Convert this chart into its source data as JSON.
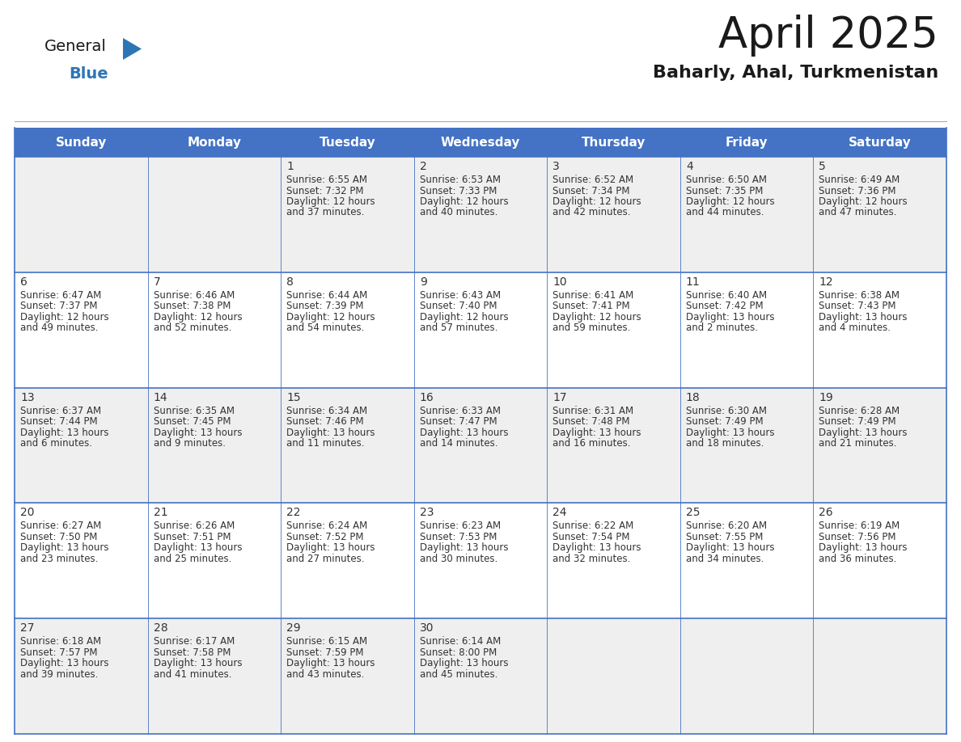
{
  "title": "April 2025",
  "subtitle": "Baharly, Ahal, Turkmenistan",
  "header_bg": "#4472C4",
  "header_text_color": "#FFFFFF",
  "border_color": "#4472C4",
  "text_color": "#333333",
  "days_of_week": [
    "Sunday",
    "Monday",
    "Tuesday",
    "Wednesday",
    "Thursday",
    "Friday",
    "Saturday"
  ],
  "row_bg": [
    "#EFEFEF",
    "#FFFFFF",
    "#EFEFEF",
    "#FFFFFF",
    "#EFEFEF"
  ],
  "weeks": [
    [
      {
        "day": "",
        "sunrise": "",
        "sunset": "",
        "daylight": ""
      },
      {
        "day": "",
        "sunrise": "",
        "sunset": "",
        "daylight": ""
      },
      {
        "day": "1",
        "sunrise": "Sunrise: 6:55 AM",
        "sunset": "Sunset: 7:32 PM",
        "daylight": "Daylight: 12 hours\nand 37 minutes."
      },
      {
        "day": "2",
        "sunrise": "Sunrise: 6:53 AM",
        "sunset": "Sunset: 7:33 PM",
        "daylight": "Daylight: 12 hours\nand 40 minutes."
      },
      {
        "day": "3",
        "sunrise": "Sunrise: 6:52 AM",
        "sunset": "Sunset: 7:34 PM",
        "daylight": "Daylight: 12 hours\nand 42 minutes."
      },
      {
        "day": "4",
        "sunrise": "Sunrise: 6:50 AM",
        "sunset": "Sunset: 7:35 PM",
        "daylight": "Daylight: 12 hours\nand 44 minutes."
      },
      {
        "day": "5",
        "sunrise": "Sunrise: 6:49 AM",
        "sunset": "Sunset: 7:36 PM",
        "daylight": "Daylight: 12 hours\nand 47 minutes."
      }
    ],
    [
      {
        "day": "6",
        "sunrise": "Sunrise: 6:47 AM",
        "sunset": "Sunset: 7:37 PM",
        "daylight": "Daylight: 12 hours\nand 49 minutes."
      },
      {
        "day": "7",
        "sunrise": "Sunrise: 6:46 AM",
        "sunset": "Sunset: 7:38 PM",
        "daylight": "Daylight: 12 hours\nand 52 minutes."
      },
      {
        "day": "8",
        "sunrise": "Sunrise: 6:44 AM",
        "sunset": "Sunset: 7:39 PM",
        "daylight": "Daylight: 12 hours\nand 54 minutes."
      },
      {
        "day": "9",
        "sunrise": "Sunrise: 6:43 AM",
        "sunset": "Sunset: 7:40 PM",
        "daylight": "Daylight: 12 hours\nand 57 minutes."
      },
      {
        "day": "10",
        "sunrise": "Sunrise: 6:41 AM",
        "sunset": "Sunset: 7:41 PM",
        "daylight": "Daylight: 12 hours\nand 59 minutes."
      },
      {
        "day": "11",
        "sunrise": "Sunrise: 6:40 AM",
        "sunset": "Sunset: 7:42 PM",
        "daylight": "Daylight: 13 hours\nand 2 minutes."
      },
      {
        "day": "12",
        "sunrise": "Sunrise: 6:38 AM",
        "sunset": "Sunset: 7:43 PM",
        "daylight": "Daylight: 13 hours\nand 4 minutes."
      }
    ],
    [
      {
        "day": "13",
        "sunrise": "Sunrise: 6:37 AM",
        "sunset": "Sunset: 7:44 PM",
        "daylight": "Daylight: 13 hours\nand 6 minutes."
      },
      {
        "day": "14",
        "sunrise": "Sunrise: 6:35 AM",
        "sunset": "Sunset: 7:45 PM",
        "daylight": "Daylight: 13 hours\nand 9 minutes."
      },
      {
        "day": "15",
        "sunrise": "Sunrise: 6:34 AM",
        "sunset": "Sunset: 7:46 PM",
        "daylight": "Daylight: 13 hours\nand 11 minutes."
      },
      {
        "day": "16",
        "sunrise": "Sunrise: 6:33 AM",
        "sunset": "Sunset: 7:47 PM",
        "daylight": "Daylight: 13 hours\nand 14 minutes."
      },
      {
        "day": "17",
        "sunrise": "Sunrise: 6:31 AM",
        "sunset": "Sunset: 7:48 PM",
        "daylight": "Daylight: 13 hours\nand 16 minutes."
      },
      {
        "day": "18",
        "sunrise": "Sunrise: 6:30 AM",
        "sunset": "Sunset: 7:49 PM",
        "daylight": "Daylight: 13 hours\nand 18 minutes."
      },
      {
        "day": "19",
        "sunrise": "Sunrise: 6:28 AM",
        "sunset": "Sunset: 7:49 PM",
        "daylight": "Daylight: 13 hours\nand 21 minutes."
      }
    ],
    [
      {
        "day": "20",
        "sunrise": "Sunrise: 6:27 AM",
        "sunset": "Sunset: 7:50 PM",
        "daylight": "Daylight: 13 hours\nand 23 minutes."
      },
      {
        "day": "21",
        "sunrise": "Sunrise: 6:26 AM",
        "sunset": "Sunset: 7:51 PM",
        "daylight": "Daylight: 13 hours\nand 25 minutes."
      },
      {
        "day": "22",
        "sunrise": "Sunrise: 6:24 AM",
        "sunset": "Sunset: 7:52 PM",
        "daylight": "Daylight: 13 hours\nand 27 minutes."
      },
      {
        "day": "23",
        "sunrise": "Sunrise: 6:23 AM",
        "sunset": "Sunset: 7:53 PM",
        "daylight": "Daylight: 13 hours\nand 30 minutes."
      },
      {
        "day": "24",
        "sunrise": "Sunrise: 6:22 AM",
        "sunset": "Sunset: 7:54 PM",
        "daylight": "Daylight: 13 hours\nand 32 minutes."
      },
      {
        "day": "25",
        "sunrise": "Sunrise: 6:20 AM",
        "sunset": "Sunset: 7:55 PM",
        "daylight": "Daylight: 13 hours\nand 34 minutes."
      },
      {
        "day": "26",
        "sunrise": "Sunrise: 6:19 AM",
        "sunset": "Sunset: 7:56 PM",
        "daylight": "Daylight: 13 hours\nand 36 minutes."
      }
    ],
    [
      {
        "day": "27",
        "sunrise": "Sunrise: 6:18 AM",
        "sunset": "Sunset: 7:57 PM",
        "daylight": "Daylight: 13 hours\nand 39 minutes."
      },
      {
        "day": "28",
        "sunrise": "Sunrise: 6:17 AM",
        "sunset": "Sunset: 7:58 PM",
        "daylight": "Daylight: 13 hours\nand 41 minutes."
      },
      {
        "day": "29",
        "sunrise": "Sunrise: 6:15 AM",
        "sunset": "Sunset: 7:59 PM",
        "daylight": "Daylight: 13 hours\nand 43 minutes."
      },
      {
        "day": "30",
        "sunrise": "Sunrise: 6:14 AM",
        "sunset": "Sunset: 8:00 PM",
        "daylight": "Daylight: 13 hours\nand 45 minutes."
      },
      {
        "day": "",
        "sunrise": "",
        "sunset": "",
        "daylight": ""
      },
      {
        "day": "",
        "sunrise": "",
        "sunset": "",
        "daylight": ""
      },
      {
        "day": "",
        "sunrise": "",
        "sunset": "",
        "daylight": ""
      }
    ]
  ],
  "logo_general_color": "#1a1a1a",
  "logo_blue_color": "#2e75b6",
  "logo_triangle_color": "#2e75b6",
  "title_color": "#1a1a1a",
  "subtitle_color": "#1a1a1a"
}
